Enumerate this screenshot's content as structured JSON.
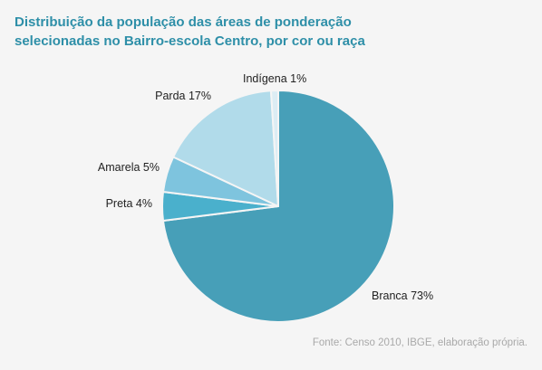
{
  "title_lines": [
    "Distribuição da população das áreas de ponderação",
    "selecionadas no Bairro-escola Centro, por cor ou raça"
  ],
  "source": "Fonte: Censo 2010, IBGE, elaboração própria.",
  "background_color": "#f5f5f5",
  "title_color": "#2e8fa8",
  "chart_data": {
    "type": "pie",
    "start_angle_deg": 0,
    "direction": "clockwise",
    "slices": [
      {
        "label": "Branca",
        "percent_label": "73%",
        "value": 73,
        "color": "#479fb8"
      },
      {
        "label": "Preta",
        "percent_label": "4%",
        "value": 4,
        "color": "#4ab0cc"
      },
      {
        "label": "Amarela",
        "percent_label": "5%",
        "value": 5,
        "color": "#7ec4de"
      },
      {
        "label": "Parda",
        "percent_label": "17%",
        "value": 17,
        "color": "#b1dbea"
      },
      {
        "label": "Indígena",
        "percent_label": "1%",
        "value": 1,
        "color": "#dcedf4"
      }
    ]
  }
}
